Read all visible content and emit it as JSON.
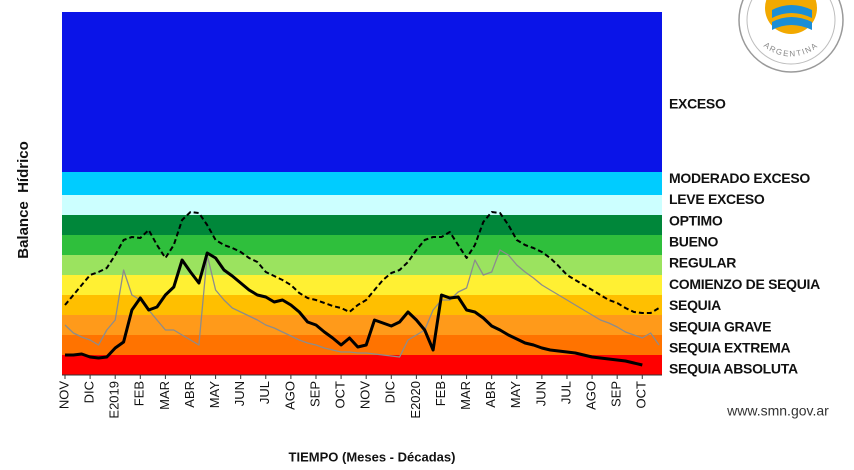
{
  "chart_data": {
    "type": "line",
    "y_label": "Balance  Hídrico",
    "x_label": "TIEMPO (Meses - Décadas)",
    "source": "www.smn.gov.ar",
    "logo_text": "ARGENTINA",
    "ylim": [
      0,
      363
    ],
    "bands": [
      {
        "name": "SEQUIA ABSOLUTA",
        "color": "#ff0000",
        "range": [
          0,
          20
        ]
      },
      {
        "name": "SEQUIA EXTREMA",
        "color": "#ff7300",
        "range": [
          20,
          40
        ]
      },
      {
        "name": "SEQUIA GRAVE",
        "color": "#ff9a1a",
        "range": [
          40,
          60
        ]
      },
      {
        "name": "SEQUIA",
        "color": "#ffbf00",
        "range": [
          60,
          80
        ]
      },
      {
        "name": "COMIENZO DE SEQUIA",
        "color": "#fff033",
        "range": [
          80,
          100
        ]
      },
      {
        "name": "REGULAR",
        "color": "#9be35f",
        "range": [
          100,
          120
        ]
      },
      {
        "name": "BUENO",
        "color": "#2fbf3c",
        "range": [
          120,
          140
        ]
      },
      {
        "name": "OPTIMO",
        "color": "#00873a",
        "range": [
          140,
          160
        ]
      },
      {
        "name": "LEVE EXCESO",
        "color": "#ccffff",
        "range": [
          160,
          180
        ]
      },
      {
        "name": "MODERADO EXCESO",
        "color": "#00ccff",
        "range": [
          180,
          203
        ]
      },
      {
        "name": "EXCESO",
        "color": "#0a14e8",
        "range": [
          203,
          363
        ]
      }
    ],
    "categories": [
      "NOV",
      null,
      null,
      "DIC",
      null,
      null,
      "E2019",
      null,
      null,
      "FEB",
      null,
      null,
      "MAR",
      null,
      null,
      "ABR",
      null,
      null,
      "MAY",
      null,
      null,
      "JUN",
      null,
      null,
      "JUL",
      null,
      null,
      "AGO",
      null,
      null,
      "SEP",
      null,
      null,
      "OCT",
      null,
      null,
      "NOV",
      null,
      null,
      "DIC",
      null,
      null,
      "E2020",
      null,
      null,
      "FEB",
      null,
      null,
      "MAR",
      null,
      null,
      "ABR",
      null,
      null,
      "MAY",
      null,
      null,
      "JUN",
      null,
      null,
      "JUL",
      null,
      null,
      "AGO",
      null,
      null,
      "SEP",
      null,
      null,
      "OCT",
      null,
      null
    ],
    "series": [
      {
        "color": "#000000",
        "dash": "dashed",
        "width": 2,
        "values": [
          70,
          80,
          90,
          100,
          103,
          107,
          120,
          135,
          138,
          137,
          145,
          130,
          117,
          130,
          155,
          163,
          162,
          150,
          135,
          130,
          127,
          123,
          117,
          113,
          103,
          99,
          95,
          90,
          82,
          77,
          75,
          72,
          69,
          67,
          63,
          70,
          75,
          85,
          95,
          102,
          105,
          113,
          125,
          135,
          138,
          138,
          143,
          130,
          117,
          130,
          153,
          163,
          162,
          150,
          135,
          130,
          127,
          123,
          117,
          109,
          100,
          95,
          90,
          85,
          80,
          75,
          72,
          67,
          63,
          62,
          62,
          67
        ]
      },
      {
        "color": "#8c8c8c",
        "dash": "solid",
        "width": 1.3,
        "values": [
          50,
          42,
          38,
          35,
          30,
          45,
          55,
          105,
          80,
          75,
          65,
          55,
          45,
          45,
          40,
          35,
          30,
          120,
          85,
          75,
          67,
          63,
          59,
          55,
          50,
          47,
          43,
          39,
          35,
          32,
          30,
          27,
          25,
          23,
          23,
          22,
          22,
          21,
          20,
          19,
          18,
          35,
          40,
          45,
          65,
          75,
          75,
          83,
          87,
          115,
          100,
          103,
          125,
          120,
          110,
          103,
          97,
          90,
          85,
          80,
          75,
          70,
          65,
          60,
          55,
          52,
          48,
          43,
          40,
          37,
          42,
          30
        ]
      },
      {
        "color": "#000000",
        "dash": "solid",
        "width": 3,
        "values": [
          20,
          20,
          21,
          18,
          17,
          18,
          27,
          33,
          65,
          77,
          65,
          68,
          80,
          88,
          115,
          103,
          92,
          122,
          117,
          105,
          99,
          92,
          85,
          80,
          78,
          73,
          75,
          70,
          63,
          53,
          50,
          43,
          37,
          30,
          37,
          28,
          30,
          55,
          52,
          49,
          53,
          63,
          55,
          45,
          25,
          80,
          77,
          78,
          65,
          63,
          57,
          49,
          45,
          40,
          36,
          32,
          30,
          27,
          25,
          24,
          23,
          22,
          20,
          18,
          17,
          16,
          15,
          14,
          12,
          10,
          null,
          null
        ]
      }
    ]
  }
}
